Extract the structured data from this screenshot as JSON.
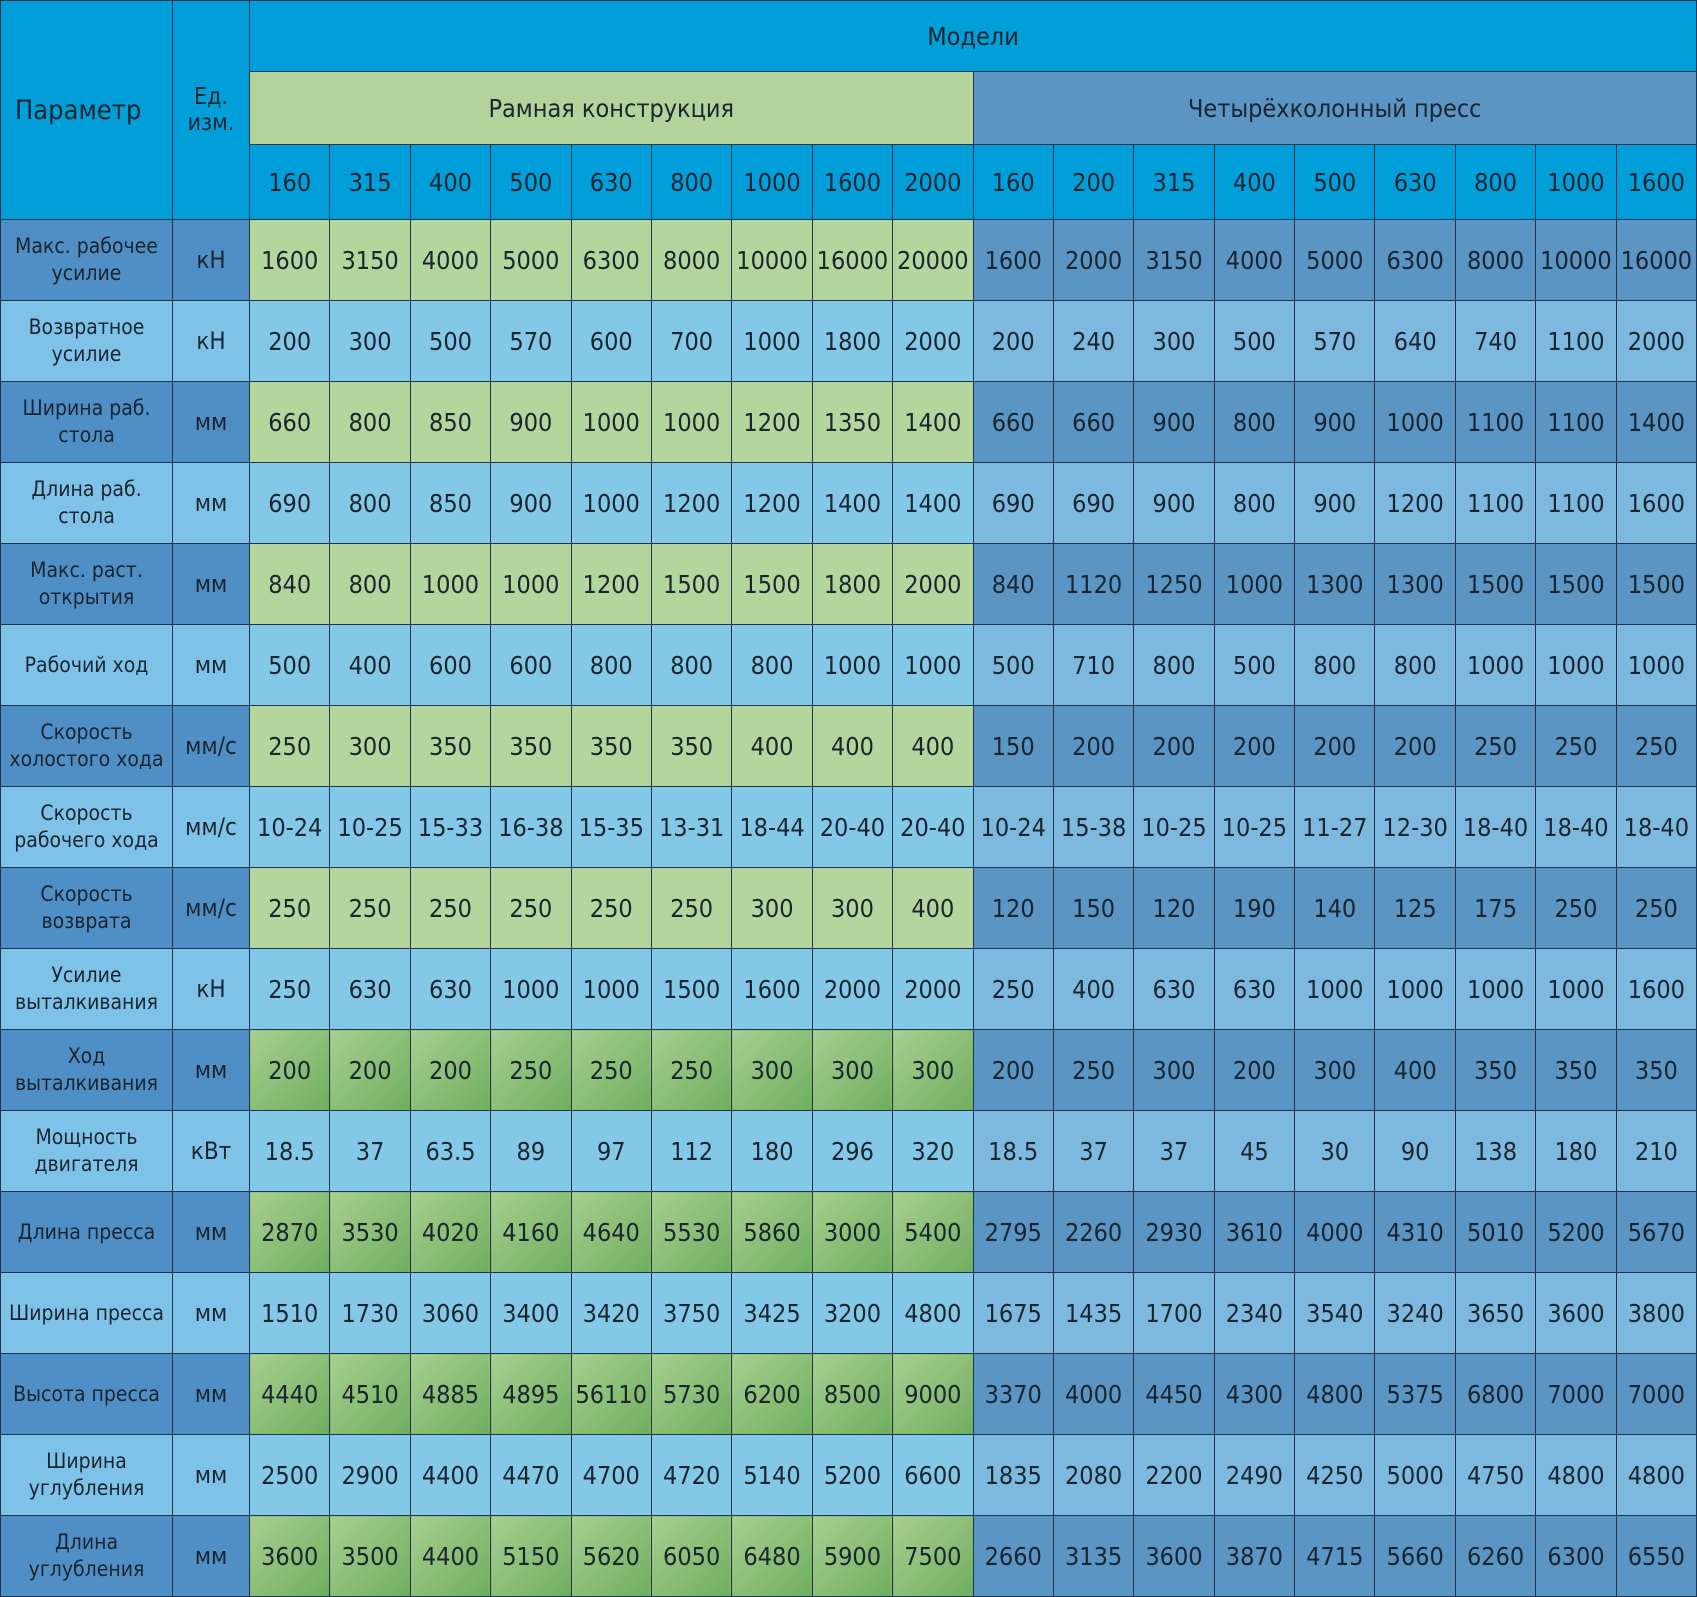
{
  "header": {
    "parameter_label": "Параметр",
    "unit_label": "Ед. изм.",
    "models_label": "Модели",
    "groups": [
      {
        "label": "Рамная конструкция",
        "models": [
          "160",
          "315",
          "400",
          "500",
          "630",
          "800",
          "1000",
          "1600",
          "2000"
        ]
      },
      {
        "label": "Четырёхколонный пресс",
        "models": [
          "160",
          "200",
          "315",
          "400",
          "500",
          "630",
          "800",
          "1000",
          "1600"
        ]
      }
    ]
  },
  "colors": {
    "header_blue": "#009fd9",
    "frame_green": "#b4d59c",
    "four_column_blue": "#5a95c3",
    "light_blue": "#84c8e8"
  },
  "rows": [
    {
      "param": "Макс. рабочее усилие",
      "unit": "кН",
      "values": [
        "1600",
        "3150",
        "4000",
        "5000",
        "6300",
        "8000",
        "10000",
        "16000",
        "20000",
        "1600",
        "2000",
        "3150",
        "4000",
        "5000",
        "6300",
        "8000",
        "10000",
        "16000"
      ]
    },
    {
      "param": "Возвратное усилие",
      "unit": "кН",
      "values": [
        "200",
        "300",
        "500",
        "570",
        "600",
        "700",
        "1000",
        "1800",
        "2000",
        "200",
        "240",
        "300",
        "500",
        "570",
        "640",
        "740",
        "1100",
        "2000"
      ]
    },
    {
      "param": "Ширина раб. стола",
      "unit": "мм",
      "values": [
        "660",
        "800",
        "850",
        "900",
        "1000",
        "1000",
        "1200",
        "1350",
        "1400",
        "660",
        "660",
        "900",
        "800",
        "900",
        "1000",
        "1100",
        "1100",
        "1400"
      ]
    },
    {
      "param": "Длина раб. стола",
      "unit": "мм",
      "values": [
        "690",
        "800",
        "850",
        "900",
        "1000",
        "1200",
        "1200",
        "1400",
        "1400",
        "690",
        "690",
        "900",
        "800",
        "900",
        "1200",
        "1100",
        "1100",
        "1600"
      ]
    },
    {
      "param": "Макс. раст. открытия",
      "unit": "мм",
      "values": [
        "840",
        "800",
        "1000",
        "1000",
        "1200",
        "1500",
        "1500",
        "1800",
        "2000",
        "840",
        "1120",
        "1250",
        "1000",
        "1300",
        "1300",
        "1500",
        "1500",
        "1500"
      ]
    },
    {
      "param": "Рабочий ход",
      "unit": "мм",
      "values": [
        "500",
        "400",
        "600",
        "600",
        "800",
        "800",
        "800",
        "1000",
        "1000",
        "500",
        "710",
        "800",
        "500",
        "800",
        "800",
        "1000",
        "1000",
        "1000"
      ]
    },
    {
      "param": "Скорость холостого хода",
      "unit": "мм/с",
      "values": [
        "250",
        "300",
        "350",
        "350",
        "350",
        "350",
        "400",
        "400",
        "400",
        "150",
        "200",
        "200",
        "200",
        "200",
        "200",
        "250",
        "250",
        "250"
      ]
    },
    {
      "param": "Скорость рабочего хода",
      "unit": "мм/с",
      "values": [
        "10-24",
        "10-25",
        "15-33",
        "16-38",
        "15-35",
        "13-31",
        "18-44",
        "20-40",
        "20-40",
        "10-24",
        "15-38",
        "10-25",
        "10-25",
        "11-27",
        "12-30",
        "18-40",
        "18-40",
        "18-40"
      ]
    },
    {
      "param": "Скорость возврата",
      "unit": "мм/с",
      "values": [
        "250",
        "250",
        "250",
        "250",
        "250",
        "250",
        "300",
        "300",
        "400",
        "120",
        "150",
        "120",
        "190",
        "140",
        "125",
        "175",
        "250",
        "250"
      ]
    },
    {
      "param": "Усилие выталкивания",
      "unit": "кН",
      "values": [
        "250",
        "630",
        "630",
        "1000",
        "1000",
        "1500",
        "1600",
        "2000",
        "2000",
        "250",
        "400",
        "630",
        "630",
        "1000",
        "1000",
        "1000",
        "1000",
        "1600"
      ]
    },
    {
      "param": "Ход выталкивания",
      "unit": "мм",
      "values": [
        "200",
        "200",
        "200",
        "250",
        "250",
        "250",
        "300",
        "300",
        "300",
        "200",
        "250",
        "300",
        "200",
        "300",
        "400",
        "350",
        "350",
        "350"
      ]
    },
    {
      "param": "Мощность двигателя",
      "unit": "кВт",
      "values": [
        "18.5",
        "37",
        "63.5",
        "89",
        "97",
        "112",
        "180",
        "296",
        "320",
        "18.5",
        "37",
        "37",
        "45",
        "30",
        "90",
        "138",
        "180",
        "210"
      ]
    },
    {
      "param": "Длина пресса",
      "unit": "мм",
      "values": [
        "2870",
        "3530",
        "4020",
        "4160",
        "4640",
        "5530",
        "5860",
        "3000",
        "5400",
        "2795",
        "2260",
        "2930",
        "3610",
        "4000",
        "4310",
        "5010",
        "5200",
        "5670"
      ]
    },
    {
      "param": "Ширина пресса",
      "unit": "мм",
      "values": [
        "1510",
        "1730",
        "3060",
        "3400",
        "3420",
        "3750",
        "3425",
        "3200",
        "4800",
        "1675",
        "1435",
        "1700",
        "2340",
        "3540",
        "3240",
        "3650",
        "3600",
        "3800"
      ]
    },
    {
      "param": "Высота пресса",
      "unit": "мм",
      "values": [
        "4440",
        "4510",
        "4885",
        "4895",
        "56110",
        "5730",
        "6200",
        "8500",
        "9000",
        "3370",
        "4000",
        "4450",
        "4300",
        "4800",
        "5375",
        "6800",
        "7000",
        "7000"
      ]
    },
    {
      "param": "Ширина углубления",
      "unit": "мм",
      "values": [
        "2500",
        "2900",
        "4400",
        "4470",
        "4700",
        "4720",
        "5140",
        "5200",
        "6600",
        "1835",
        "2080",
        "2200",
        "2490",
        "4250",
        "5000",
        "4750",
        "4800",
        "4800"
      ]
    },
    {
      "param": "Длина углубления",
      "unit": "мм",
      "values": [
        "3600",
        "3500",
        "4400",
        "5150",
        "5620",
        "6050",
        "6480",
        "5900",
        "7500",
        "2660",
        "3135",
        "3600",
        "3870",
        "4715",
        "5660",
        "6260",
        "6300",
        "6550"
      ]
    }
  ]
}
